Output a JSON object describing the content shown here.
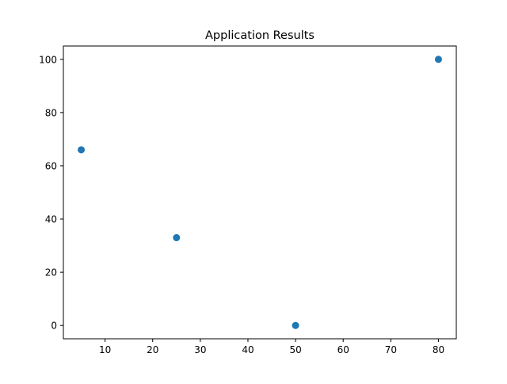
{
  "chart_data": {
    "type": "scatter",
    "title": "Application Results",
    "xlabel": "",
    "ylabel": "",
    "x": [
      5,
      25,
      50,
      80
    ],
    "y": [
      66,
      33,
      0,
      100
    ],
    "xlim": [
      1.25,
      83.75
    ],
    "ylim": [
      -5,
      105
    ],
    "xticks": [
      10,
      20,
      30,
      40,
      50,
      60,
      70,
      80
    ],
    "yticks": [
      0,
      20,
      40,
      60,
      80,
      100
    ],
    "grid": false,
    "marker_color": "#1f77b4"
  }
}
